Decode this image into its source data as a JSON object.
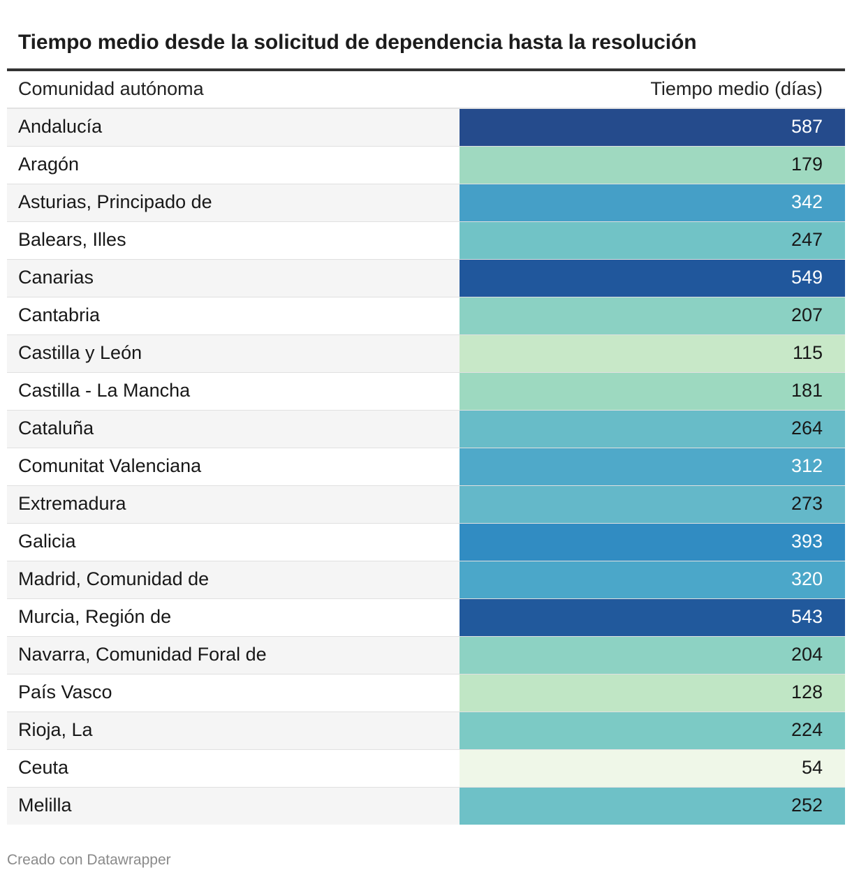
{
  "title": "Tiempo medio desde la solicitud de dependencia hasta la resolución",
  "footer": "Creado con Datawrapper",
  "columns": {
    "left": "Comunidad autónoma",
    "right": "Tiempo medio (días)"
  },
  "chart_data": {
    "type": "table",
    "title": "Tiempo medio desde la solicitud de dependencia hasta la resolución",
    "columns": [
      "Comunidad autónoma",
      "Tiempo medio (días)"
    ],
    "rows": [
      {
        "name": "Andalucía",
        "value": 587,
        "color": "#254b8c",
        "text_color": "#ffffff"
      },
      {
        "name": "Aragón",
        "value": 179,
        "color": "#9fd9c0",
        "text_color": "#181818"
      },
      {
        "name": "Asturias, Principado de",
        "value": 342,
        "color": "#459fc7",
        "text_color": "#ffffff"
      },
      {
        "name": "Balears, Illes",
        "value": 247,
        "color": "#71c3c6",
        "text_color": "#181818"
      },
      {
        "name": "Canarias",
        "value": 549,
        "color": "#20579c",
        "text_color": "#ffffff"
      },
      {
        "name": "Cantabria",
        "value": 207,
        "color": "#8bd1c3",
        "text_color": "#181818"
      },
      {
        "name": "Castilla y León",
        "value": 115,
        "color": "#c8e8c8",
        "text_color": "#181818"
      },
      {
        "name": "Castilla - La Mancha",
        "value": 181,
        "color": "#9dd9c0",
        "text_color": "#181818"
      },
      {
        "name": "Cataluña",
        "value": 264,
        "color": "#68bcc8",
        "text_color": "#181818"
      },
      {
        "name": "Comunitat Valenciana",
        "value": 312,
        "color": "#4fa9c9",
        "text_color": "#ffffff"
      },
      {
        "name": "Extremadura",
        "value": 273,
        "color": "#64b8c9",
        "text_color": "#181818"
      },
      {
        "name": "Galicia",
        "value": 393,
        "color": "#318cc2",
        "text_color": "#ffffff"
      },
      {
        "name": "Madrid, Comunidad de",
        "value": 320,
        "color": "#4ba7c9",
        "text_color": "#ffffff"
      },
      {
        "name": "Murcia, Región de",
        "value": 543,
        "color": "#21599c",
        "text_color": "#ffffff"
      },
      {
        "name": "Navarra, Comunidad Foral de",
        "value": 204,
        "color": "#8dd2c3",
        "text_color": "#181818"
      },
      {
        "name": "País Vasco",
        "value": 128,
        "color": "#c0e6c5",
        "text_color": "#181818"
      },
      {
        "name": "Rioja, La",
        "value": 224,
        "color": "#7ccac5",
        "text_color": "#181818"
      },
      {
        "name": "Ceuta",
        "value": 54,
        "color": "#eff7e8",
        "text_color": "#181818"
      },
      {
        "name": "Melilla",
        "value": 252,
        "color": "#6ec1c7",
        "text_color": "#181818"
      }
    ]
  }
}
